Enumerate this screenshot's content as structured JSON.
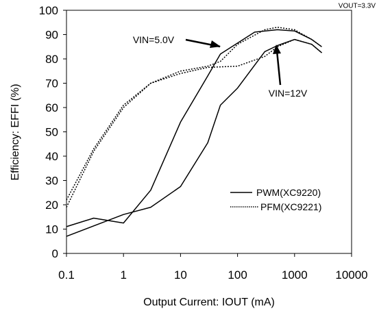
{
  "chart_data": {
    "type": "line",
    "corner_note": "VOUT=3.3V",
    "xlabel": "Output Current: IOUT (mA)",
    "ylabel": "Efficiency: EFFI (%)",
    "x_scale": "log",
    "xlim": [
      0.1,
      10000
    ],
    "ylim": [
      0,
      100
    ],
    "x_ticks": [
      0.1,
      1,
      10,
      100,
      1000,
      10000
    ],
    "x_tick_labels": [
      "0.1",
      "1",
      "10",
      "100",
      "1000",
      "10000"
    ],
    "y_ticks": [
      0,
      10,
      20,
      30,
      40,
      50,
      60,
      70,
      80,
      90,
      100
    ],
    "y_tick_labels": [
      "0",
      "10",
      "20",
      "30",
      "40",
      "50",
      "60",
      "70",
      "80",
      "90",
      "100"
    ],
    "grid": "none",
    "legend": {
      "placement": "lower-right",
      "entries": [
        {
          "label": "PWM(XC9220)",
          "style": "solid"
        },
        {
          "label": "PFM(XC9221)",
          "style": "dotted"
        }
      ]
    },
    "annotations": [
      {
        "text": "VIN=5.0V"
      },
      {
        "text": "VIN=12V"
      }
    ],
    "series": [
      {
        "style": "solid",
        "x": [
          0.1,
          0.3,
          1,
          3,
          10,
          30,
          50,
          100,
          200,
          500,
          1000,
          2000,
          3000
        ],
        "y": [
          11,
          14.5,
          12.5,
          26,
          54,
          73,
          82,
          86.5,
          91,
          92,
          91.5,
          88,
          85
        ]
      },
      {
        "style": "solid",
        "x": [
          0.1,
          1,
          3,
          10,
          30,
          50,
          100,
          300,
          500,
          1000,
          2000,
          3000
        ],
        "y": [
          7,
          16,
          19,
          27.5,
          45.5,
          61,
          68,
          83,
          85.5,
          88,
          86,
          82.5
        ]
      },
      {
        "style": "dotted",
        "x": [
          0.1,
          0.3,
          1,
          3,
          10,
          30,
          50,
          100,
          300,
          500,
          1000,
          2000,
          3000
        ],
        "y": [
          19,
          42,
          60,
          70,
          75,
          77,
          79,
          86,
          92,
          93,
          92,
          88,
          85
        ]
      },
      {
        "style": "dotted",
        "x": [
          0.1,
          0.3,
          1,
          3,
          10,
          30,
          100,
          300,
          500,
          1000,
          2000,
          3000
        ],
        "y": [
          22,
          43,
          61,
          70,
          74,
          76.5,
          77,
          81,
          85,
          88,
          86,
          82.5
        ]
      }
    ]
  }
}
